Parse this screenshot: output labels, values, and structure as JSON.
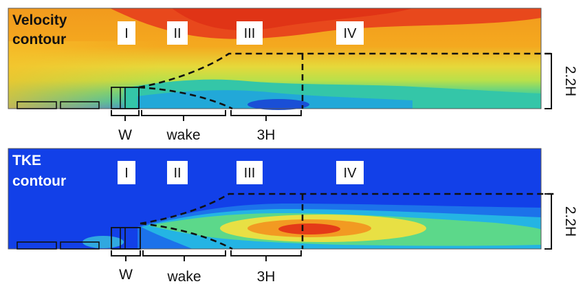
{
  "velocity_panel": {
    "title_line1": "Velocity",
    "title_line2": "contour",
    "regions": [
      "I",
      "II",
      "III",
      "IV"
    ],
    "height_label": "2.2H"
  },
  "tke_panel": {
    "title_line1": "TKE",
    "title_line2": "contour",
    "regions": [
      "I",
      "II",
      "III",
      "IV"
    ],
    "height_label": "2.2H"
  },
  "dimensions": {
    "width_label": "W",
    "wake_label": "wake",
    "length_label": "3H"
  },
  "colors": {
    "velocity_high": "#e8401a",
    "velocity_mid": "#f4a11c",
    "velocity_green": "#28c48a",
    "velocity_low": "#1a4fd6",
    "tke_background": "#1240e8",
    "tke_peak": "#e6401a",
    "guide_line": "#111111"
  }
}
